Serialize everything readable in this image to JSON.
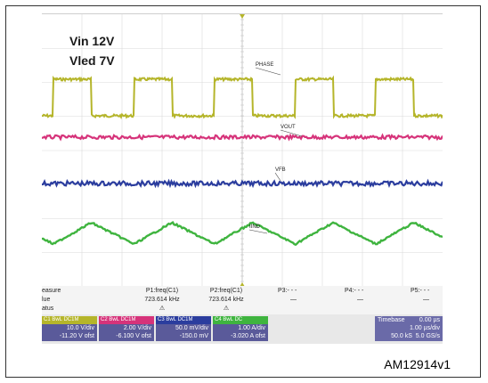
{
  "annotations": {
    "vin": "Vin 12V",
    "vled": "Vled 7V"
  },
  "traces": [
    {
      "name": "PHASE",
      "color": "#b5b52a"
    },
    {
      "name": "VOUT",
      "color": "#d6337a"
    },
    {
      "name": "VFB",
      "color": "#2b3d9e"
    },
    {
      "name": "IIND",
      "color": "#3fb43f"
    }
  ],
  "measure": {
    "row_labels": [
      "easure",
      "lue",
      "atus"
    ],
    "p1": {
      "label": "P1:freq(C1)",
      "value": "723.614 kHz",
      "status": "⚠"
    },
    "p2": {
      "label": "P2:freq(C1)",
      "value": "723.614 kHz",
      "status": "⚠"
    },
    "p3": {
      "label": "P3:- - -",
      "value": "—"
    },
    "p4": {
      "label": "P4:- - -",
      "value": "—"
    },
    "p5": {
      "label": "P5:- - -",
      "value": "—"
    }
  },
  "channels": [
    {
      "id": "C1",
      "badge": "BwL DC1M",
      "color": "#b5b52a",
      "scale": "10.0 V/div",
      "offset": "-11.20 V ofst"
    },
    {
      "id": "C2",
      "badge": "BwL DC1M",
      "color": "#d6337a",
      "scale": "2.00 V/div",
      "offset": "-6.100 V ofst"
    },
    {
      "id": "C3",
      "badge": "BwL DC1M",
      "color": "#2b3d9e",
      "scale": "50.0 mV/div",
      "offset": "-150.0 mV"
    },
    {
      "id": "C4",
      "badge": "BwL DC",
      "color": "#3fb43f",
      "scale": "1.00 A/div",
      "offset": "-3.020 A ofst"
    }
  ],
  "timebase": {
    "label": "Timebase",
    "delay": "0.00 µs",
    "scale": "1.00 µs/div",
    "samples": "50.0 kS",
    "rate": "5.0 GS/s"
  },
  "figure_id": "AM12914v1"
}
